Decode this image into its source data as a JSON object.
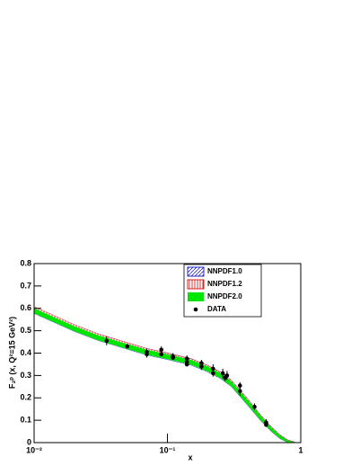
{
  "chart_data": {
    "type": "band-scatter",
    "x_label": "x",
    "y_label": "F₂ᵖ (x, Q²=15 GeV²)",
    "xlim": [
      0.01,
      1
    ],
    "ylim": [
      0,
      0.8
    ],
    "log_x": true,
    "xticks": [
      {
        "value": 0.01,
        "label": "10⁻²"
      },
      {
        "value": 0.1,
        "label": "10⁻¹"
      },
      1
    ],
    "yticks": [
      0,
      0.1,
      0.2,
      0.3,
      0.4,
      0.5,
      0.6,
      0.7,
      0.8
    ],
    "legend": "top-right",
    "series": [
      {
        "name": "NNPDF1.0",
        "color": "#2b2bc8",
        "fill": "hatch-diag",
        "x": [
          0.01,
          0.02,
          0.03,
          0.05,
          0.07,
          0.1,
          0.15,
          0.2,
          0.25,
          0.3,
          0.35,
          0.4,
          0.5,
          0.6,
          0.7,
          0.8,
          0.9
        ],
        "upper": [
          0.607,
          0.527,
          0.487,
          0.447,
          0.421,
          0.401,
          0.376,
          0.346,
          0.316,
          0.281,
          0.236,
          0.196,
          0.124,
          0.072,
          0.035,
          0.012,
          0.003
        ],
        "lower": [
          0.577,
          0.497,
          0.457,
          0.417,
          0.391,
          0.371,
          0.346,
          0.316,
          0.286,
          0.251,
          0.206,
          0.166,
          0.098,
          0.05,
          0.017,
          0.0,
          0.0
        ]
      },
      {
        "name": "NNPDF1.2",
        "color": "#d42020",
        "fill": "hatch-vert",
        "x": [
          0.01,
          0.02,
          0.03,
          0.05,
          0.07,
          0.1,
          0.15,
          0.2,
          0.25,
          0.3,
          0.35,
          0.4,
          0.5,
          0.6,
          0.7,
          0.8,
          0.9
        ],
        "upper": [
          0.608,
          0.528,
          0.487,
          0.447,
          0.421,
          0.4,
          0.375,
          0.345,
          0.315,
          0.28,
          0.235,
          0.195,
          0.123,
          0.071,
          0.034,
          0.011,
          0.002
        ],
        "lower": [
          0.582,
          0.502,
          0.461,
          0.421,
          0.396,
          0.376,
          0.351,
          0.321,
          0.291,
          0.256,
          0.211,
          0.171,
          0.101,
          0.053,
          0.019,
          0.002,
          0.0
        ]
      },
      {
        "name": "NNPDF2.0",
        "color": "#00e600",
        "fill": "solid",
        "x": [
          0.01,
          0.02,
          0.03,
          0.05,
          0.07,
          0.1,
          0.15,
          0.2,
          0.25,
          0.3,
          0.35,
          0.4,
          0.5,
          0.6,
          0.7,
          0.8,
          0.9
        ],
        "upper": [
          0.6,
          0.52,
          0.48,
          0.44,
          0.415,
          0.395,
          0.37,
          0.34,
          0.31,
          0.275,
          0.23,
          0.19,
          0.12,
          0.068,
          0.032,
          0.01,
          0.002
        ],
        "lower": [
          0.578,
          0.498,
          0.458,
          0.418,
          0.393,
          0.373,
          0.348,
          0.318,
          0.288,
          0.253,
          0.208,
          0.168,
          0.1,
          0.052,
          0.018,
          0.001,
          0.0
        ]
      },
      {
        "name": "DATA",
        "color": "#000000",
        "fill": "points",
        "x": [
          0.035,
          0.05,
          0.07,
          0.07,
          0.09,
          0.09,
          0.11,
          0.11,
          0.14,
          0.14,
          0.14,
          0.18,
          0.18,
          0.22,
          0.22,
          0.26,
          0.27,
          0.28,
          0.35,
          0.35,
          0.45,
          0.55,
          0.55
        ],
        "values": [
          0.455,
          0.43,
          0.405,
          0.395,
          0.415,
          0.395,
          0.385,
          0.38,
          0.375,
          0.36,
          0.35,
          0.355,
          0.34,
          0.33,
          0.31,
          0.31,
          0.29,
          0.3,
          0.255,
          0.23,
          0.16,
          0.09,
          0.08
        ],
        "errors": [
          0.02,
          0.01,
          0.015,
          0.015,
          0.015,
          0.01,
          0.015,
          0.01,
          0.015,
          0.015,
          0.01,
          0.015,
          0.015,
          0.02,
          0.015,
          0.02,
          0.015,
          0.02,
          0.015,
          0.02,
          0.015,
          0.015,
          0.01
        ]
      }
    ]
  }
}
